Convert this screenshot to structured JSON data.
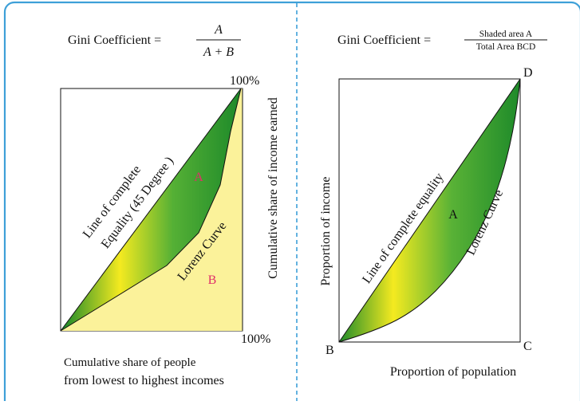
{
  "colors": {
    "frame": "#3ea0d8",
    "divider": "#3ea0d8",
    "green_dark": "#1f8a2a",
    "green_light": "#f4ea20",
    "area_b": "#fbf29a",
    "label_magenta": "#e0306a",
    "text": "#111111"
  },
  "left": {
    "formula_label": "Gini  Coefficient =",
    "numerator": "A",
    "denominator": "A + B",
    "top_pct": "100%",
    "bottom_pct": "100%",
    "region_a": "A",
    "region_b": "B",
    "equality_line_1": "Line of complete",
    "equality_line_2": "Equality (45 Degree )",
    "lorenz_label": "Lorenz Curve",
    "y_axis": "Cumulative share of income earned",
    "x_axis_1": "Cumulative share of people",
    "x_axis_2": "from lowest to highest incomes"
  },
  "right": {
    "formula_label": "Gini Coefficient =",
    "numerator": "Shaded area A",
    "denominator": "Total Area BCD",
    "corner_d": "D",
    "corner_b": "B",
    "corner_c": "C",
    "region_a": "A",
    "equality_label": "Line of complete equality",
    "lorenz_label": "Lorenz Curve",
    "y_axis": "Proportion of income",
    "x_axis": "Proportion of population"
  }
}
